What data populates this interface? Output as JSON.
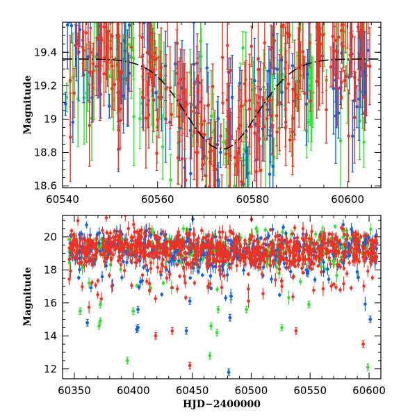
{
  "chart_data": [
    {
      "type": "scatter",
      "xlabel": "",
      "ylabel": "Magnitude",
      "xlim": [
        60540,
        60607
      ],
      "ylim": [
        19.58,
        18.59
      ],
      "y_inverted": true,
      "xticks": [
        60540,
        60560,
        60580,
        60600
      ],
      "yticks": [
        18.6,
        18.8,
        19.0,
        19.2,
        19.4
      ],
      "ytick_labels": [
        "18.6",
        "18.8",
        "19",
        "19.2",
        "19.4"
      ],
      "series_colors": {
        "g": "#33dd33",
        "b": "#1060e0",
        "r": "#ee3322"
      },
      "model_curve": {
        "style": "dashed-solid black",
        "peak_x": 60573.5,
        "peak_y": 18.82,
        "baseline_y": 19.36
      }
    },
    {
      "type": "scatter",
      "xlabel": "HJD−2400000",
      "ylabel": "Magnitude",
      "xlim": [
        60340,
        60610
      ],
      "ylim": [
        21.3,
        11.4
      ],
      "y_inverted": true,
      "xticks": [
        60350,
        60400,
        60450,
        60500,
        60550,
        60600
      ],
      "yticks": [
        12,
        14,
        16,
        18,
        20
      ],
      "ytick_labels": [
        "12",
        "14",
        "16",
        "18",
        "20"
      ],
      "series_colors": {
        "g": "#33dd33",
        "b": "#1060e0",
        "r": "#ee3322"
      },
      "outliers": [
        {
          "x": 60355,
          "y": 15.5,
          "s": "g"
        },
        {
          "x": 60361,
          "y": 14.8,
          "s": "b"
        },
        {
          "x": 60371,
          "y": 14.6,
          "s": "g"
        },
        {
          "x": 60372,
          "y": 14.9,
          "s": "g"
        },
        {
          "x": 60372,
          "y": 15.9,
          "s": "g"
        },
        {
          "x": 60395,
          "y": 12.5,
          "s": "g"
        },
        {
          "x": 60400,
          "y": 15.5,
          "s": "g"
        },
        {
          "x": 60403,
          "y": 14.4,
          "s": "b"
        },
        {
          "x": 60404,
          "y": 14.5,
          "s": "b"
        },
        {
          "x": 60404,
          "y": 15.6,
          "s": "b"
        },
        {
          "x": 60419,
          "y": 14.0,
          "s": "r"
        },
        {
          "x": 60433,
          "y": 14.3,
          "s": "r"
        },
        {
          "x": 60445,
          "y": 14.3,
          "s": "b"
        },
        {
          "x": 60448,
          "y": 12.2,
          "s": "r"
        },
        {
          "x": 60448,
          "y": 16.1,
          "s": "b"
        },
        {
          "x": 60465,
          "y": 12.8,
          "s": "g"
        },
        {
          "x": 60466,
          "y": 14.6,
          "s": "g"
        },
        {
          "x": 60471,
          "y": 14.2,
          "s": "g"
        },
        {
          "x": 60472,
          "y": 15.6,
          "s": "g"
        },
        {
          "x": 60481,
          "y": 11.8,
          "s": "b"
        },
        {
          "x": 60482,
          "y": 15.1,
          "s": "b"
        },
        {
          "x": 60483,
          "y": 16.4,
          "s": "b"
        },
        {
          "x": 60496,
          "y": 15.6,
          "s": "g"
        },
        {
          "x": 60526,
          "y": 14.5,
          "s": "g"
        },
        {
          "x": 60538,
          "y": 14.3,
          "s": "r"
        },
        {
          "x": 60549,
          "y": 15.9,
          "s": "g"
        },
        {
          "x": 60595,
          "y": 13.5,
          "s": "r"
        },
        {
          "x": 60599,
          "y": 12.1,
          "s": "g"
        },
        {
          "x": 60601,
          "y": 15.0,
          "s": "b"
        }
      ]
    }
  ]
}
